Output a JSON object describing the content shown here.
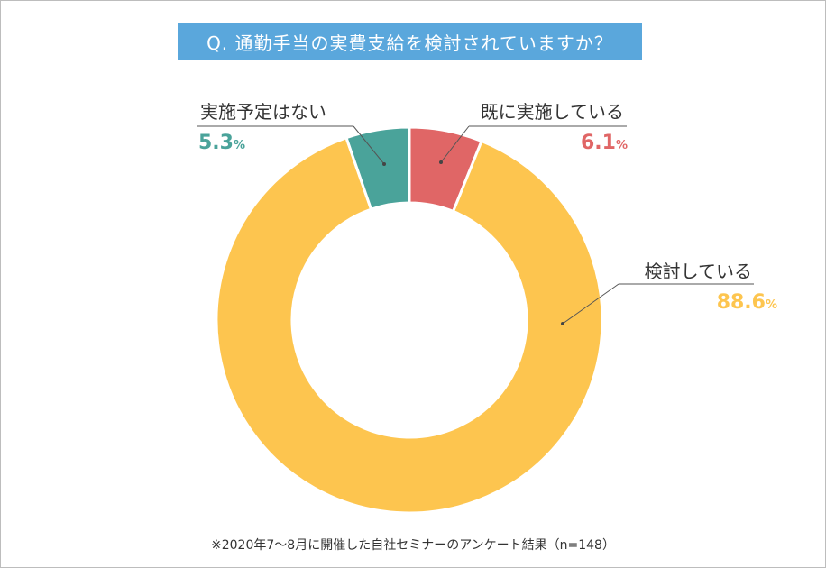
{
  "chart_data": {
    "type": "pie",
    "title": "Q. 通勤手当の実費支給を検討されていますか？",
    "slices": [
      {
        "label": "既に実施している",
        "value": 6.1,
        "display": "6.1",
        "unit": "%",
        "color": "#e06666"
      },
      {
        "label": "検討している",
        "value": 88.6,
        "display": "88.6",
        "unit": "%",
        "color": "#fdc54f"
      },
      {
        "label": "実施予定はない",
        "value": 5.3,
        "display": "5.3",
        "unit": "%",
        "color": "#4aa39a"
      }
    ],
    "footnote": "※2020年7〜8月に開催した自社セミナーのアンケート結果（n=148）"
  }
}
